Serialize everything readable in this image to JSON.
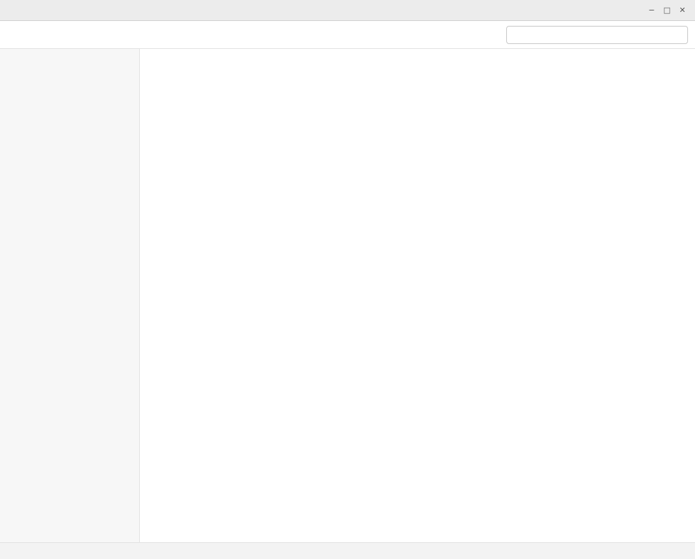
{
  "window": {
    "title": ""
  },
  "toolbar": {
    "search_placeholder": ""
  },
  "main": {
    "heading": ""
  },
  "statusbar": {
    "text": ""
  }
}
